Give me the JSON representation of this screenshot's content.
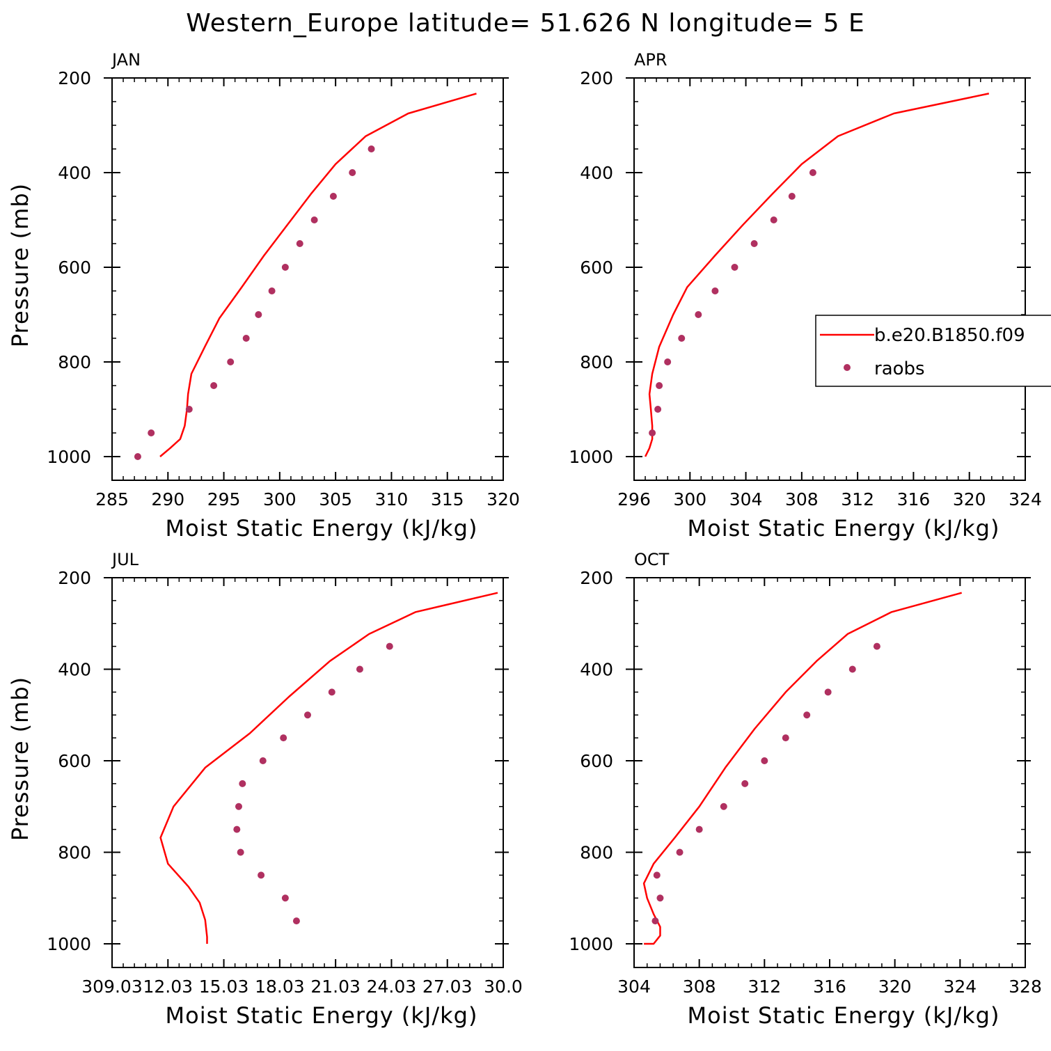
{
  "figure": {
    "title": "Western_Europe  latitude= 51.626 N longitude= 5 E",
    "colors": {
      "model": "#ff0000",
      "obs": "#b03060",
      "axis": "#000000"
    },
    "legend": {
      "model_label": "b.e20.B1850.f09",
      "obs_label": "raobs"
    }
  },
  "chart_data": [
    {
      "type": "line",
      "panel": "JAN",
      "xlabel": "Moist Static Energy (kJ/kg)",
      "ylabel": "Pressure (mb)",
      "xlim": [
        285,
        320
      ],
      "ylim": [
        1000,
        200
      ],
      "xticks": [
        285,
        290,
        295,
        300,
        305,
        310,
        315,
        320
      ],
      "xtick_labels": [
        "285",
        "290",
        "295",
        "300",
        "305",
        "310",
        "315",
        "320"
      ],
      "yticks": [
        200,
        400,
        600,
        800,
        1000
      ],
      "ytick_labels": [
        "200",
        "400",
        "600",
        "800",
        "1000"
      ],
      "series": [
        {
          "name": "b.e20.B1850.f09",
          "kind": "line",
          "x": [
            317.6,
            311.5,
            307.7,
            305.0,
            302.8,
            300.7,
            298.6,
            296.6,
            294.6,
            293.3,
            292.1,
            291.8,
            291.7,
            291.5,
            291.1,
            290.2,
            289.3
          ],
          "y": [
            233,
            275,
            323,
            382,
            445,
            510,
            575,
            642,
            708,
            768,
            825,
            868,
            900,
            935,
            963,
            982,
            1000
          ]
        },
        {
          "name": "raobs",
          "kind": "scatter",
          "x": [
            308.2,
            306.5,
            304.8,
            303.1,
            301.8,
            300.5,
            299.3,
            298.1,
            297.0,
            295.6,
            294.1,
            291.9,
            288.5,
            287.3
          ],
          "y": [
            350,
            400,
            450,
            500,
            550,
            600,
            650,
            700,
            750,
            800,
            850,
            900,
            950,
            1000
          ]
        }
      ]
    },
    {
      "type": "line",
      "panel": "APR",
      "xlabel": "Moist Static Energy (kJ/kg)",
      "ylabel": "Pressure (mb)",
      "xlim": [
        296,
        324
      ],
      "ylim": [
        1000,
        200
      ],
      "xticks": [
        296,
        300,
        304,
        308,
        312,
        316,
        320,
        324
      ],
      "xtick_labels": [
        "296",
        "300",
        "304",
        "308",
        "312",
        "316",
        "320",
        "324"
      ],
      "yticks": [
        200,
        400,
        600,
        800,
        1000
      ],
      "ytick_labels": [
        "200",
        "400",
        "600",
        "800",
        "1000"
      ],
      "series": [
        {
          "name": "b.e20.B1850.f09",
          "kind": "line",
          "x": [
            321.4,
            314.6,
            310.6,
            308.0,
            305.9,
            303.8,
            301.8,
            299.8,
            298.8,
            297.8,
            297.3,
            297.1,
            297.2,
            297.3,
            297.3,
            297.1,
            296.8
          ],
          "y": [
            233,
            275,
            323,
            382,
            445,
            510,
            575,
            642,
            700,
            768,
            825,
            868,
            900,
            935,
            963,
            982,
            1000
          ]
        },
        {
          "name": "raobs",
          "kind": "scatter",
          "x": [
            308.8,
            307.3,
            306.0,
            304.6,
            303.2,
            301.8,
            300.6,
            299.4,
            298.4,
            297.8,
            297.7,
            297.3
          ],
          "y": [
            400,
            450,
            500,
            550,
            600,
            650,
            700,
            750,
            800,
            850,
            900,
            950
          ]
        }
      ]
    },
    {
      "type": "line",
      "panel": "JUL",
      "xlabel": "Moist Static Energy (kJ/kg)",
      "ylabel": "Pressure (mb)",
      "xlim": [
        309.0,
        330.0
      ],
      "ylim": [
        1000,
        200
      ],
      "xticks": [
        309.0,
        312.0,
        315.0,
        318.0,
        321.0,
        324.0,
        327.0,
        330.0
      ],
      "xtick_labels": [
        "309.03",
        "12.03",
        "15.03",
        "18.03",
        "21.03",
        "24.03",
        "27.03",
        "30.0"
      ],
      "yticks": [
        200,
        400,
        600,
        800,
        1000
      ],
      "ytick_labels": [
        "200",
        "400",
        "600",
        "800",
        "1000"
      ],
      "series": [
        {
          "name": "b.e20.B1850.f09",
          "kind": "line",
          "x": [
            329.7,
            325.3,
            322.8,
            320.7,
            318.5,
            316.4,
            314.0,
            312.3,
            311.6,
            312.0,
            313.1,
            313.7,
            314.0,
            314.1,
            314.1
          ],
          "y": [
            233,
            275,
            323,
            382,
            460,
            540,
            615,
            700,
            768,
            825,
            875,
            910,
            948,
            985,
            1000
          ]
        },
        {
          "name": "raobs",
          "kind": "scatter",
          "x": [
            323.9,
            322.3,
            320.8,
            319.5,
            318.2,
            317.1,
            316.0,
            315.8,
            315.7,
            315.9,
            317.0,
            318.3,
            318.9
          ],
          "y": [
            350,
            400,
            450,
            500,
            550,
            600,
            650,
            700,
            750,
            800,
            850,
            900,
            950
          ]
        }
      ]
    },
    {
      "type": "line",
      "panel": "OCT",
      "xlabel": "Moist Static Energy (kJ/kg)",
      "ylabel": "Pressure (mb)",
      "xlim": [
        304,
        328
      ],
      "ylim": [
        1000,
        200
      ],
      "xticks": [
        304,
        308,
        312,
        316,
        320,
        324,
        328
      ],
      "xtick_labels": [
        "304",
        "308",
        "312",
        "316",
        "320",
        "324",
        "328"
      ],
      "yticks": [
        200,
        400,
        600,
        800,
        1000
      ],
      "ytick_labels": [
        "200",
        "400",
        "600",
        "800",
        "1000"
      ],
      "series": [
        {
          "name": "b.e20.B1850.f09",
          "kind": "line",
          "x": [
            324.1,
            319.8,
            317.1,
            315.2,
            313.3,
            311.4,
            309.6,
            308.0,
            306.5,
            305.2,
            304.6,
            304.8,
            305.2,
            305.6,
            305.6,
            305.2,
            304.6
          ],
          "y": [
            233,
            275,
            323,
            382,
            450,
            530,
            615,
            700,
            768,
            825,
            868,
            900,
            935,
            963,
            982,
            1000,
            1000
          ]
        },
        {
          "name": "raobs",
          "kind": "scatter",
          "x": [
            318.9,
            317.4,
            315.9,
            314.6,
            313.3,
            312.0,
            310.8,
            309.5,
            308.0,
            306.8,
            305.4,
            305.6,
            305.3
          ],
          "y": [
            350,
            400,
            450,
            500,
            550,
            600,
            650,
            700,
            750,
            800,
            850,
            900,
            950
          ]
        }
      ]
    }
  ]
}
